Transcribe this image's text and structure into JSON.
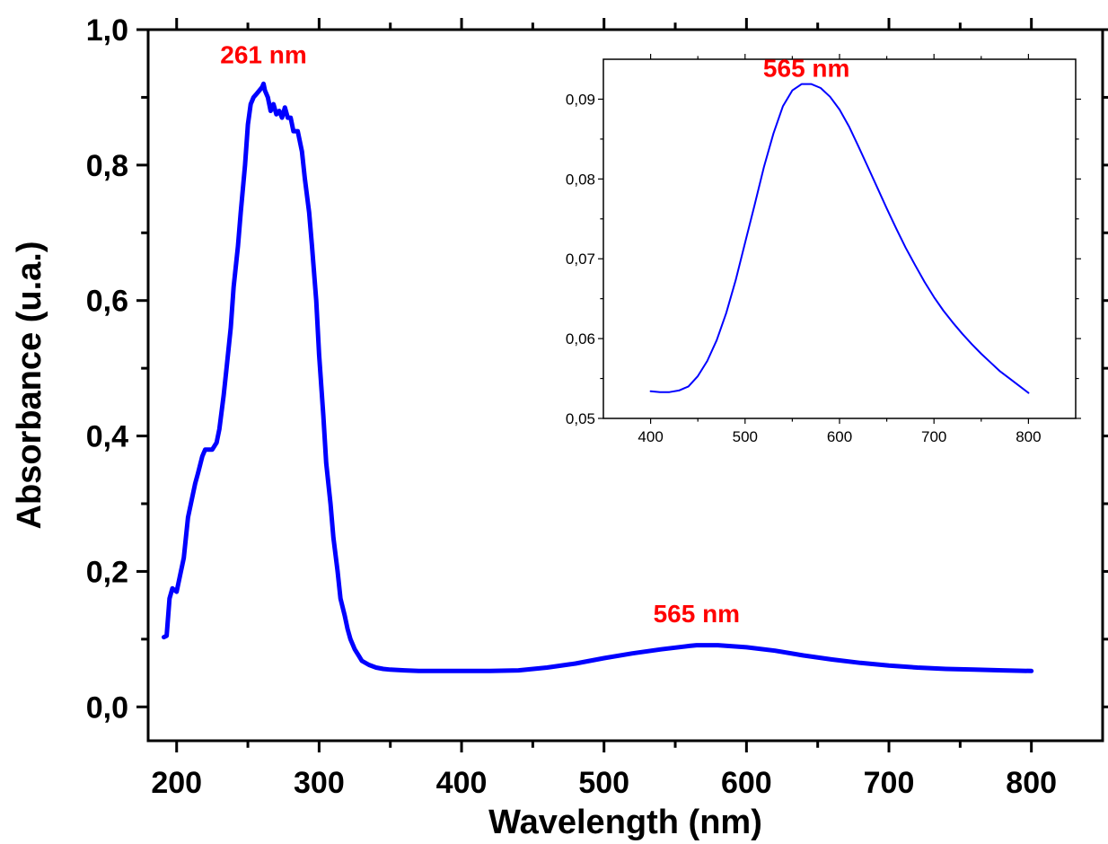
{
  "chart_data": [
    {
      "id": "main",
      "type": "line",
      "title": "",
      "xlabel": "Wavelength (nm)",
      "ylabel": "Absorbance (u.a.)",
      "xlim": [
        180,
        850
      ],
      "ylim": [
        -0.05,
        1.0
      ],
      "xticks": [
        200,
        300,
        400,
        500,
        600,
        700,
        800
      ],
      "xtick_labels": [
        "200",
        "300",
        "400",
        "500",
        "600",
        "700",
        "800"
      ],
      "yticks": [
        0.0,
        0.2,
        0.4,
        0.6,
        0.8,
        1.0
      ],
      "ytick_labels": [
        "0,0",
        "0,2",
        "0,4",
        "0,6",
        "0,8",
        "1,0"
      ],
      "grid": false,
      "series_color": "#0000ff",
      "annotation_color": "#ff0000",
      "annotations": [
        {
          "text": "261 nm",
          "x": 261,
          "y": 0.95
        },
        {
          "text": "565 nm",
          "x": 565,
          "y": 0.125
        }
      ],
      "series": [
        {
          "x": [
            191,
            193,
            195,
            197,
            200,
            203,
            205,
            208,
            210,
            213,
            215,
            218,
            220,
            222,
            225,
            228,
            230,
            233,
            235,
            238,
            240,
            243,
            245,
            248,
            250,
            252,
            254,
            256,
            258,
            260,
            261,
            262,
            264,
            266,
            268,
            270,
            272,
            274,
            276,
            278,
            280,
            282,
            285,
            288,
            290,
            293,
            295,
            298,
            300,
            303,
            305,
            308,
            310,
            313,
            315,
            318,
            320,
            322,
            325,
            328,
            330,
            335,
            340,
            345,
            350,
            360,
            370,
            380,
            400,
            420,
            440,
            460,
            480,
            500,
            520,
            540,
            560,
            565,
            580,
            600,
            620,
            640,
            660,
            680,
            700,
            720,
            740,
            760,
            780,
            800
          ],
          "y": [
            0.103,
            0.105,
            0.16,
            0.175,
            0.17,
            0.2,
            0.22,
            0.28,
            0.3,
            0.33,
            0.345,
            0.37,
            0.38,
            0.38,
            0.38,
            0.39,
            0.41,
            0.46,
            0.5,
            0.56,
            0.62,
            0.68,
            0.73,
            0.8,
            0.86,
            0.89,
            0.9,
            0.905,
            0.91,
            0.915,
            0.92,
            0.91,
            0.9,
            0.88,
            0.89,
            0.875,
            0.88,
            0.87,
            0.885,
            0.87,
            0.87,
            0.85,
            0.85,
            0.82,
            0.78,
            0.73,
            0.68,
            0.6,
            0.52,
            0.43,
            0.36,
            0.3,
            0.25,
            0.2,
            0.16,
            0.135,
            0.115,
            0.1,
            0.085,
            0.075,
            0.068,
            0.062,
            0.058,
            0.056,
            0.055,
            0.054,
            0.053,
            0.053,
            0.053,
            0.053,
            0.054,
            0.058,
            0.064,
            0.072,
            0.079,
            0.085,
            0.09,
            0.091,
            0.091,
            0.088,
            0.083,
            0.076,
            0.07,
            0.065,
            0.061,
            0.058,
            0.056,
            0.055,
            0.054,
            0.053
          ]
        }
      ]
    },
    {
      "id": "inset",
      "type": "line",
      "title": "",
      "xlabel": "",
      "ylabel": "",
      "xlim": [
        350,
        850
      ],
      "ylim": [
        0.05,
        0.095
      ],
      "xticks": [
        400,
        500,
        600,
        700,
        800
      ],
      "xtick_labels": [
        "400",
        "500",
        "600",
        "700",
        "800"
      ],
      "yticks": [
        0.05,
        0.06,
        0.07,
        0.08,
        0.09
      ],
      "ytick_labels": [
        "0,05",
        "0,06",
        "0,07",
        "0,08",
        "0,09"
      ],
      "grid": false,
      "series_color": "#0000ff",
      "annotation_color": "#ff0000",
      "annotations": [
        {
          "text": "565 nm",
          "x": 565,
          "y": 0.0928
        }
      ],
      "series": [
        {
          "x": [
            400,
            410,
            420,
            430,
            440,
            450,
            460,
            470,
            480,
            490,
            500,
            510,
            520,
            530,
            540,
            550,
            560,
            565,
            570,
            580,
            590,
            600,
            610,
            620,
            630,
            640,
            650,
            660,
            670,
            680,
            690,
            700,
            710,
            720,
            730,
            740,
            750,
            760,
            770,
            780,
            790,
            800
          ],
          "y": [
            0.0534,
            0.0533,
            0.0533,
            0.0535,
            0.054,
            0.0553,
            0.0572,
            0.0598,
            0.0632,
            0.0673,
            0.072,
            0.0767,
            0.0815,
            0.0857,
            0.0891,
            0.0911,
            0.0919,
            0.0919,
            0.0919,
            0.0914,
            0.0903,
            0.0887,
            0.0866,
            0.0841,
            0.0815,
            0.0789,
            0.0763,
            0.0738,
            0.0714,
            0.0692,
            0.0671,
            0.0652,
            0.0635,
            0.062,
            0.0606,
            0.0593,
            0.0581,
            0.057,
            0.0559,
            0.055,
            0.0541,
            0.0532
          ]
        }
      ]
    }
  ]
}
